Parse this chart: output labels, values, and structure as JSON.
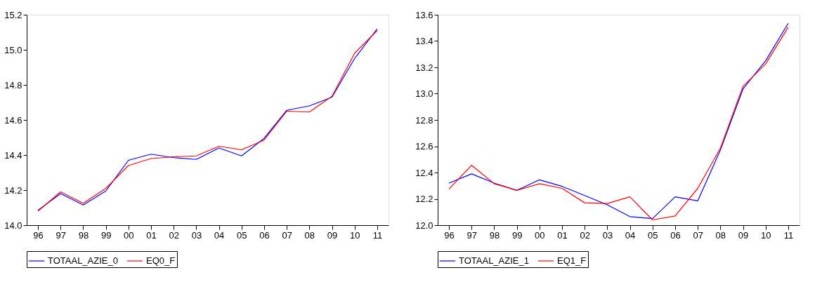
{
  "chart_data": [
    {
      "type": "line",
      "categories": [
        "96",
        "97",
        "98",
        "99",
        "00",
        "01",
        "02",
        "03",
        "04",
        "05",
        "06",
        "07",
        "08",
        "09",
        "10",
        "11"
      ],
      "ylim": [
        14.0,
        15.2
      ],
      "yticks": [
        {
          "value": 14,
          "label": "14.0"
        },
        14.2,
        14.4,
        14.6,
        14.8,
        {
          "value": 15,
          "label": "15.0"
        },
        15.2
      ],
      "grid": false,
      "legend": "bottom",
      "series": [
        {
          "name": "TOTAAL_AZIE_0",
          "color": "#0000ff",
          "values": [
            14.085,
            14.18,
            14.115,
            14.195,
            14.37,
            14.405,
            14.385,
            14.375,
            14.44,
            14.395,
            14.495,
            14.655,
            14.68,
            14.73,
            14.95,
            15.12
          ]
        },
        {
          "name": "EQ0_F",
          "color": "#ff0000",
          "values": [
            14.08,
            14.19,
            14.125,
            14.21,
            14.34,
            14.38,
            14.39,
            14.395,
            14.45,
            14.43,
            14.485,
            14.65,
            14.645,
            14.735,
            14.98,
            15.11
          ]
        }
      ]
    },
    {
      "type": "line",
      "categories": [
        "96",
        "97",
        "98",
        "99",
        "00",
        "01",
        "02",
        "03",
        "04",
        "05",
        "06",
        "07",
        "08",
        "09",
        "10",
        "11"
      ],
      "ylim": [
        12.0,
        13.6
      ],
      "yticks": [
        {
          "value": 12,
          "label": "12.0"
        },
        12.2,
        12.4,
        12.6,
        12.8,
        {
          "value": 13,
          "label": "13.0"
        },
        13.2,
        13.4,
        13.6
      ],
      "grid": false,
      "legend": "bottom",
      "series": [
        {
          "name": "TOTAAL_AZIE_1",
          "color": "#0000ff",
          "values": [
            12.32,
            12.39,
            12.32,
            12.265,
            12.345,
            12.295,
            12.225,
            12.155,
            12.065,
            12.05,
            12.215,
            12.185,
            12.57,
            13.035,
            13.25,
            13.535
          ]
        },
        {
          "name": "EQ1_F",
          "color": "#ff0000",
          "values": [
            12.275,
            12.455,
            12.315,
            12.265,
            12.315,
            12.28,
            12.17,
            12.165,
            12.215,
            12.04,
            12.07,
            12.28,
            12.585,
            13.055,
            13.225,
            13.505
          ]
        }
      ]
    }
  ]
}
